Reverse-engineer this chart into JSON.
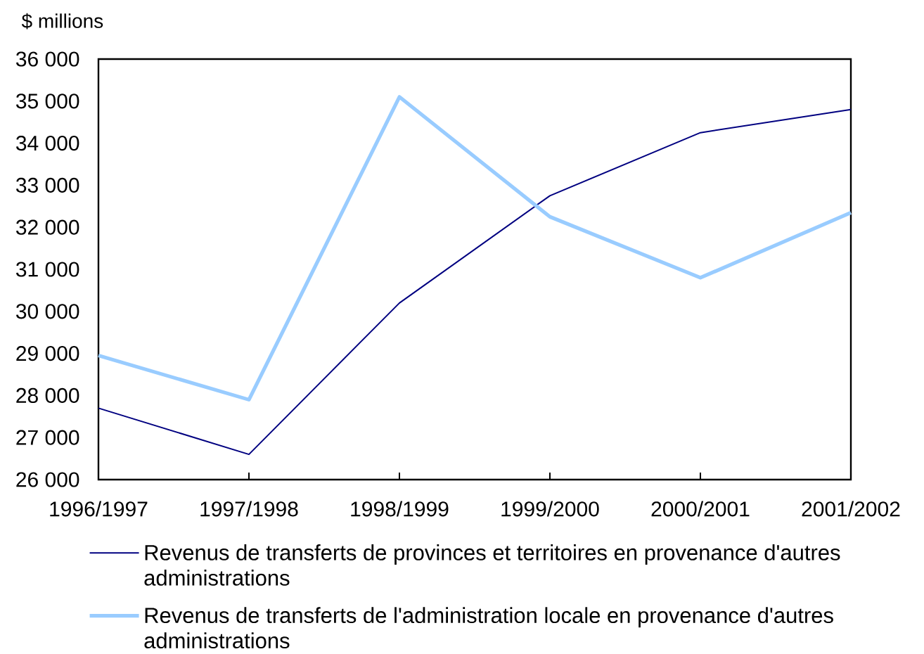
{
  "chart_data": {
    "type": "line",
    "ylabel": "$ millions",
    "categories": [
      "1996/1997",
      "1997/1998",
      "1998/1999",
      "1999/2000",
      "2000/2001",
      "2001/2002"
    ],
    "series": [
      {
        "name": "Revenus de transferts de provinces et territoires en provenance d'autres administrations",
        "color": "#000080",
        "values": [
          27700,
          26600,
          30200,
          32750,
          34250,
          34800
        ]
      },
      {
        "name": "Revenus de transferts de l'administration locale en provenance d'autres administrations",
        "color": "#99ccff",
        "values": [
          28950,
          27900,
          35100,
          32250,
          30800,
          32350
        ]
      }
    ],
    "ylim": [
      26000,
      36000
    ],
    "yticks": [
      {
        "value": 26000,
        "label": "26 000"
      },
      {
        "value": 27000,
        "label": "27 000"
      },
      {
        "value": 28000,
        "label": "28 000"
      },
      {
        "value": 29000,
        "label": "29 000"
      },
      {
        "value": 30000,
        "label": "30 000"
      },
      {
        "value": 31000,
        "label": "31 000"
      },
      {
        "value": 32000,
        "label": "32 000"
      },
      {
        "value": 33000,
        "label": "33 000"
      },
      {
        "value": 34000,
        "label": "34 000"
      },
      {
        "value": 35000,
        "label": "35 000"
      },
      {
        "value": 36000,
        "label": "36 000"
      }
    ],
    "legend": "bottom",
    "marker": "none"
  }
}
